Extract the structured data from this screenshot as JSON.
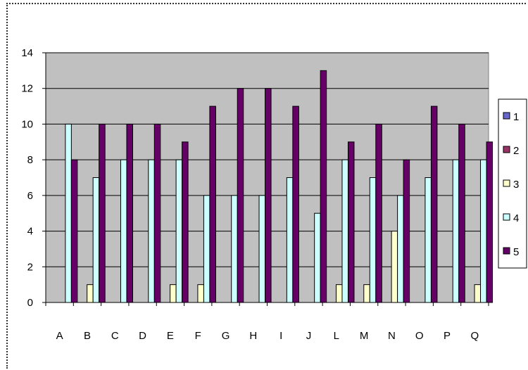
{
  "chart_data": {
    "type": "bar",
    "categories": [
      "A",
      "B",
      "C",
      "D",
      "E",
      "F",
      "G",
      "H",
      "I",
      "J",
      "L",
      "M",
      "N",
      "O",
      "P",
      "Q"
    ],
    "series": [
      {
        "name": "1",
        "color": "#6666cc",
        "values": [
          0,
          0,
          0,
          0,
          0,
          0,
          0,
          0,
          0,
          0,
          0,
          0,
          0,
          0,
          0,
          0
        ]
      },
      {
        "name": "2",
        "color": "#993366",
        "values": [
          0,
          0,
          0,
          0,
          0,
          0,
          0,
          0,
          0,
          0,
          0,
          0,
          0,
          0,
          0,
          0
        ]
      },
      {
        "name": "3",
        "color": "#ffffcc",
        "values": [
          0,
          1,
          0,
          0,
          1,
          1,
          0,
          0,
          0,
          0,
          1,
          1,
          4,
          0,
          0,
          1
        ]
      },
      {
        "name": "4",
        "color": "#ccffff",
        "values": [
          10,
          7,
          8,
          8,
          8,
          6,
          6,
          6,
          7,
          5,
          8,
          7,
          6,
          7,
          8,
          8
        ]
      },
      {
        "name": "5",
        "color": "#660066",
        "values": [
          8,
          10,
          10,
          10,
          9,
          11,
          12,
          12,
          11,
          13,
          9,
          10,
          8,
          11,
          10,
          9
        ]
      }
    ],
    "ylim": [
      0,
      14
    ],
    "yticks": [
      "0",
      "2",
      "4",
      "6",
      "8",
      "10",
      "12",
      "14"
    ],
    "grid": true,
    "legend_position": "right",
    "plot_background": "#c0c0c0"
  }
}
